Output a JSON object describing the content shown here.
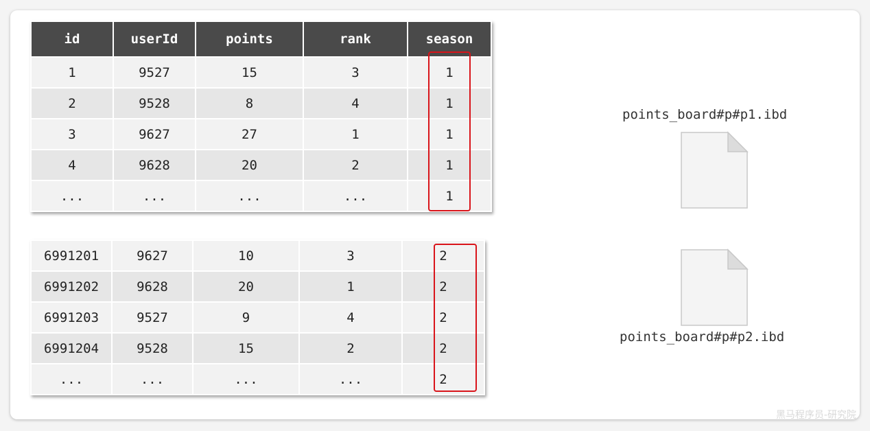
{
  "table1": {
    "headers": [
      "id",
      "userId",
      "points",
      "rank",
      "season"
    ],
    "rows": [
      [
        "1",
        "9527",
        "15",
        "3",
        "1"
      ],
      [
        "2",
        "9528",
        "8",
        "4",
        "1"
      ],
      [
        "3",
        "9627",
        "27",
        "1",
        "1"
      ],
      [
        "4",
        "9628",
        "20",
        "2",
        "1"
      ],
      [
        "...",
        "...",
        "...",
        "...",
        "1"
      ]
    ]
  },
  "table2": {
    "rows": [
      [
        "6991201",
        "9627",
        "10",
        "3",
        "2"
      ],
      [
        "6991202",
        "9628",
        "20",
        "1",
        "2"
      ],
      [
        "6991203",
        "9527",
        "9",
        "4",
        "2"
      ],
      [
        "6991204",
        "9528",
        "15",
        "2",
        "2"
      ],
      [
        "...",
        "...",
        "...",
        "...",
        "2"
      ]
    ]
  },
  "files": [
    {
      "label": "points_board#p#p1.ibd",
      "icon": "file-icon"
    },
    {
      "label": "points_board#p#p2.ibd",
      "icon": "file-icon"
    }
  ],
  "highlight_color": "#d9141a",
  "watermark": "黑马程序员-研究院"
}
